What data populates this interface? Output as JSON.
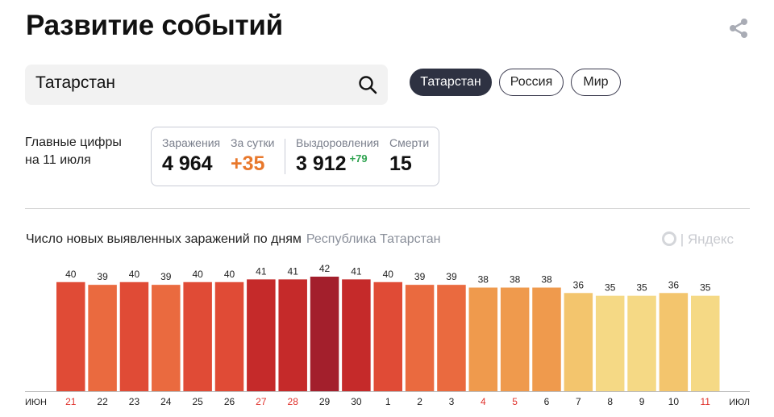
{
  "header": {
    "title": "Развитие событий",
    "share_icon": "share-icon"
  },
  "search": {
    "value": "Татарстан",
    "icon": "search-icon"
  },
  "chips": [
    {
      "label": "Татарстан",
      "active": true
    },
    {
      "label": "Россия",
      "active": false
    },
    {
      "label": "Мир",
      "active": false
    }
  ],
  "summary": {
    "label_line1": "Главные цифры",
    "label_line2": "на 11 июля",
    "infections_label": "Заражения",
    "infections_value": "4 964",
    "daily_label": "За сутки",
    "daily_value": "+35",
    "recovered_label": "Выздоровления",
    "recovered_value": "3 912",
    "recovered_delta": "+79",
    "deaths_label": "Смерти",
    "deaths_value": "15"
  },
  "chart_header": {
    "title": "Число новых выявленных заражений по дням",
    "region": "Республика Татарстан",
    "watermark": "Яндекс"
  },
  "chart_data": {
    "type": "bar",
    "categories": [
      "21",
      "22",
      "23",
      "24",
      "25",
      "26",
      "27",
      "28",
      "29",
      "30",
      "1",
      "2",
      "3",
      "4",
      "5",
      "6",
      "7",
      "8",
      "9",
      "10",
      "11"
    ],
    "values": [
      40,
      39,
      40,
      39,
      40,
      40,
      41,
      41,
      42,
      41,
      40,
      39,
      39,
      38,
      38,
      38,
      36,
      35,
      35,
      36,
      35
    ],
    "month_start_label": "ИЮН",
    "month_end_label": "ИЮЛ",
    "weekend_categories": [
      "21",
      "27",
      "28",
      "4",
      "5",
      "11"
    ],
    "ylim": [
      0,
      42
    ],
    "grid": false,
    "legend": "none",
    "colors": {
      "35": "#f5d985",
      "36": "#f3c56d",
      "38": "#ef9a4d",
      "39": "#ea6a3f",
      "40": "#e04b36",
      "41": "#c52a2a",
      "42": "#a31f2c",
      "weekend_label": "#e0332d",
      "label": "#222222"
    }
  }
}
